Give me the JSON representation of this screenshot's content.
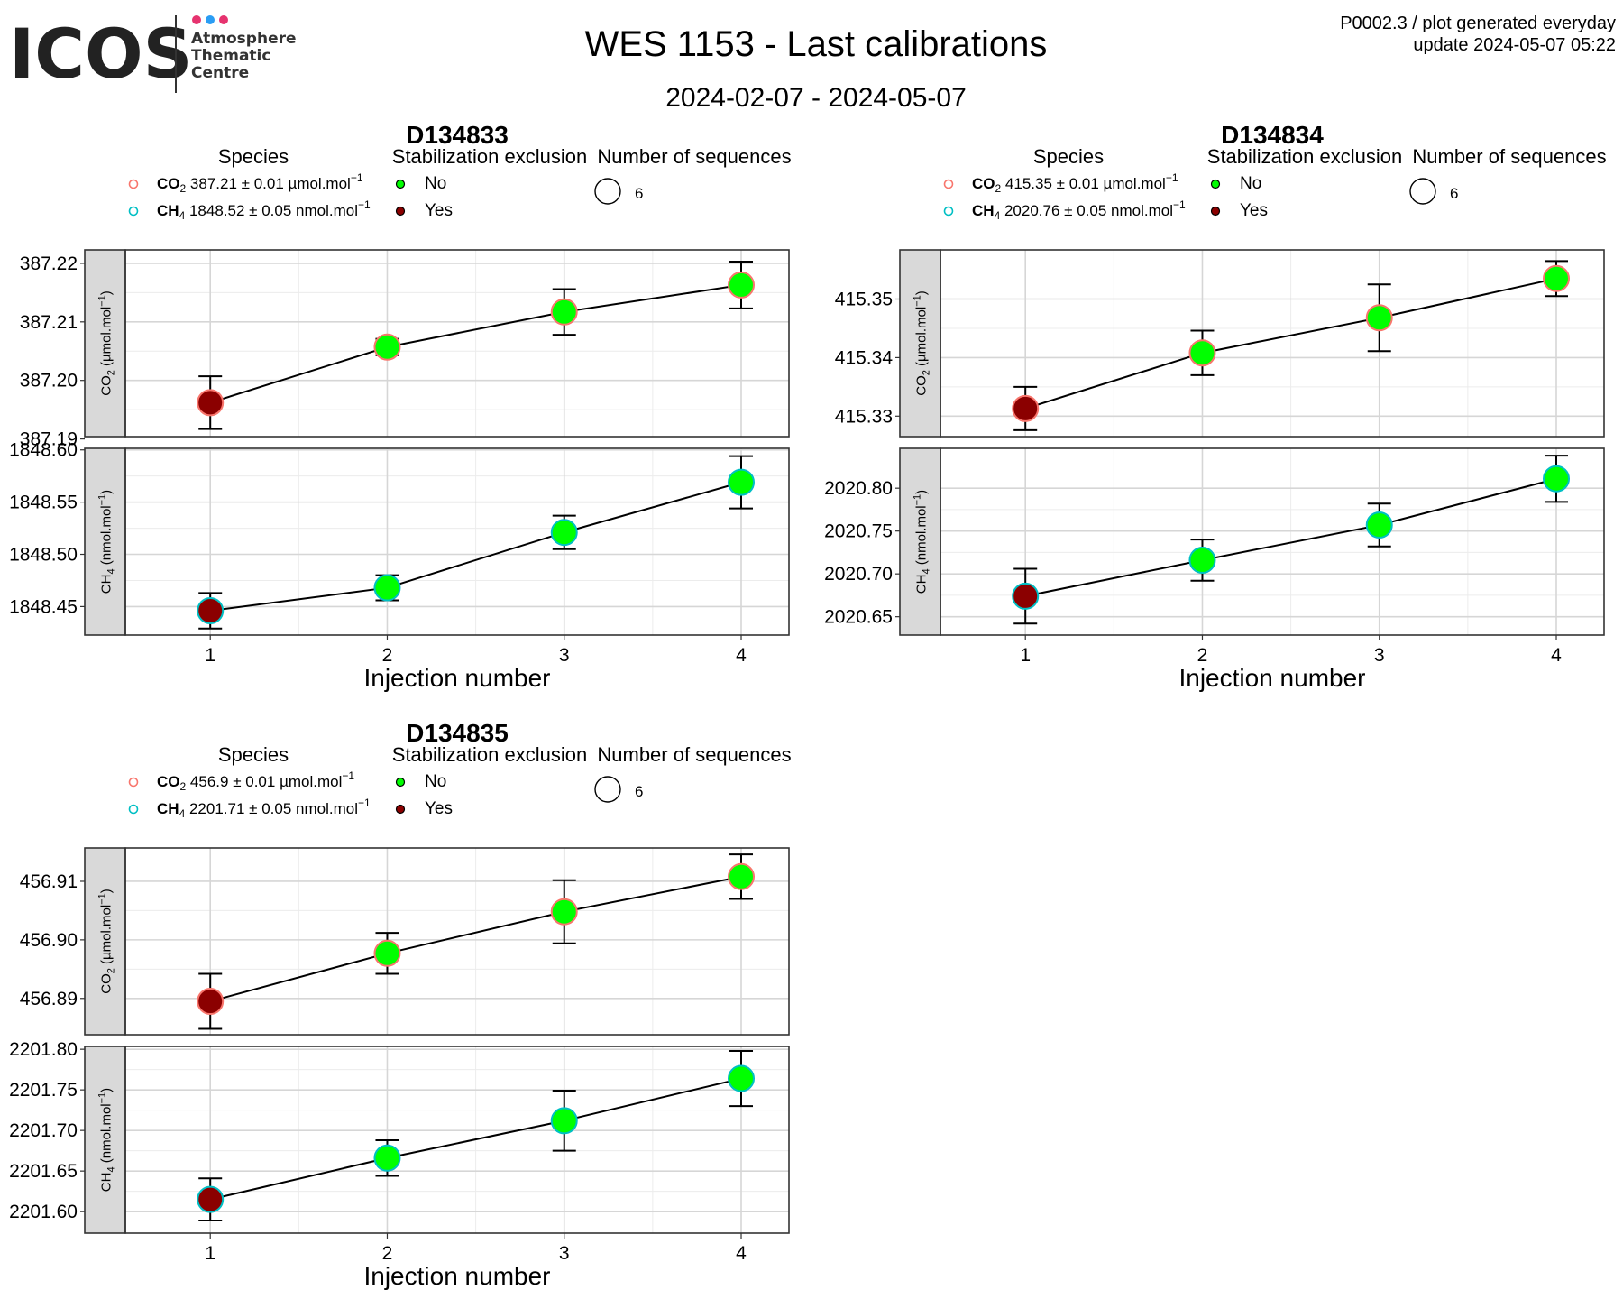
{
  "header": {
    "logo_word": "ICOS",
    "logo_sub": [
      "Atmosphere",
      "Thematic",
      "Centre"
    ],
    "logo_dot_colors": [
      "#e6336f",
      "#2a9df4",
      "#e6336f"
    ],
    "title": "WES 1153 - Last calibrations",
    "subtitle": "2024-02-07 - 2024-05-07",
    "meta_line1": "P0002.3 / plot generated everyday",
    "meta_line2": "update  2024-05-07 05:22"
  },
  "colors": {
    "no": "#00ff00",
    "yes": "#8b0000",
    "co2_outline": "#f8766d",
    "ch4_outline": "#00bfc4",
    "strip_fill": "#d9d9d9"
  },
  "chart_data": [
    {
      "type": "scatter",
      "title": "D134833",
      "legend": {
        "species_title": "Species",
        "species": [
          {
            "sym": "CO",
            "sub": "2",
            "value": "387.21",
            "pm": "±",
            "err": "0.01",
            "unit": "µmol.mol",
            "sup": "−1"
          },
          {
            "sym": "CH",
            "sub": "4",
            "value": "1848.52",
            "pm": "±",
            "err": "0.05",
            "unit": "nmol.mol",
            "sup": "−1"
          }
        ],
        "exclusion_title": "Stabilization exclusion",
        "exclusion": [
          "No",
          "Yes"
        ],
        "sequences_title": "Number of sequences",
        "sequences": "6"
      },
      "xlabel": "Injection number",
      "x_ticks": [
        "1",
        "2",
        "3",
        "4"
      ],
      "xlim": [
        0.52,
        4.27
      ],
      "panels": [
        {
          "strip_label": "CO",
          "strip_sub": "2",
          "strip_unit": " (µmol.mol",
          "strip_sup": "−1",
          "ylim": [
            387.1904,
            387.2223
          ],
          "y_ticks": [
            387.19,
            387.2,
            387.21,
            387.22
          ],
          "y_tick_labels": [
            "387.19",
            "387.20",
            "387.21",
            "387.22"
          ],
          "x": [
            1,
            2,
            3,
            4
          ],
          "y": [
            387.1962,
            387.2057,
            387.2117,
            387.2163
          ],
          "err": [
            0.0045,
            0.0014,
            0.0039,
            0.004
          ],
          "excluded": [
            true,
            false,
            false,
            false
          ]
        },
        {
          "strip_label": "CH",
          "strip_sub": "4",
          "strip_unit": " (nmol.mol",
          "strip_sup": "−1",
          "ylim": [
            1848.4227,
            1848.6015
          ],
          "y_ticks": [
            1848.45,
            1848.5,
            1848.55,
            1848.6
          ],
          "y_tick_labels": [
            "1848.45",
            "1848.50",
            "1848.55",
            "1848.60"
          ],
          "x": [
            1,
            2,
            3,
            4
          ],
          "y": [
            1848.446,
            1848.468,
            1848.521,
            1848.569
          ],
          "err": [
            0.017,
            0.012,
            0.016,
            0.025
          ],
          "excluded": [
            true,
            false,
            false,
            false
          ]
        }
      ]
    },
    {
      "type": "scatter",
      "title": "D134834",
      "legend": {
        "species_title": "Species",
        "species": [
          {
            "sym": "CO",
            "sub": "2",
            "value": "415.35",
            "pm": "±",
            "err": "0.01",
            "unit": "µmol.mol",
            "sup": "−1"
          },
          {
            "sym": "CH",
            "sub": "4",
            "value": "2020.76",
            "pm": "±",
            "err": "0.05",
            "unit": "nmol.mol",
            "sup": "−1"
          }
        ],
        "exclusion_title": "Stabilization exclusion",
        "exclusion": [
          "No",
          "Yes"
        ],
        "sequences_title": "Number of sequences",
        "sequences": "6"
      },
      "xlabel": "Injection number",
      "x_ticks": [
        "1",
        "2",
        "3",
        "4"
      ],
      "xlim": [
        0.52,
        4.27
      ],
      "panels": [
        {
          "strip_label": "CO",
          "strip_sub": "2",
          "strip_unit": " (µmol.mol",
          "strip_sup": "−1",
          "ylim": [
            415.3265,
            415.3584
          ],
          "y_ticks": [
            415.33,
            415.34,
            415.35
          ],
          "y_tick_labels": [
            "415.33",
            "415.34",
            "415.35"
          ],
          "x": [
            1,
            2,
            3,
            4
          ],
          "y": [
            415.3313,
            415.3408,
            415.3468,
            415.3535
          ],
          "err": [
            0.0037,
            0.0038,
            0.0057,
            0.003
          ],
          "excluded": [
            true,
            false,
            false,
            false
          ]
        },
        {
          "strip_label": "CH",
          "strip_sub": "4",
          "strip_unit": " (nmol.mol",
          "strip_sup": "−1",
          "ylim": [
            2020.6286,
            2020.8465
          ],
          "y_ticks": [
            2020.65,
            2020.7,
            2020.75,
            2020.8
          ],
          "y_tick_labels": [
            "2020.65",
            "2020.70",
            "2020.75",
            "2020.80"
          ],
          "x": [
            1,
            2,
            3,
            4
          ],
          "y": [
            2020.674,
            2020.716,
            2020.757,
            2020.811
          ],
          "err": [
            0.032,
            0.024,
            0.025,
            0.027
          ],
          "excluded": [
            true,
            false,
            false,
            false
          ]
        }
      ]
    },
    {
      "type": "scatter",
      "title": "D134835",
      "legend": {
        "species_title": "Species",
        "species": [
          {
            "sym": "CO",
            "sub": "2",
            "value": "456.9",
            "pm": "±",
            "err": "0.01",
            "unit": "µmol.mol",
            "sup": "−1"
          },
          {
            "sym": "CH",
            "sub": "4",
            "value": "2201.71",
            "pm": "±",
            "err": "0.05",
            "unit": "nmol.mol",
            "sup": "−1"
          }
        ],
        "exclusion_title": "Stabilization exclusion",
        "exclusion": [
          "No",
          "Yes"
        ],
        "sequences_title": "Number of sequences",
        "sequences": "6"
      },
      "xlabel": "Injection number",
      "x_ticks": [
        "1",
        "2",
        "3",
        "4"
      ],
      "xlim": [
        0.52,
        4.27
      ],
      "panels": [
        {
          "strip_label": "CO",
          "strip_sub": "2",
          "strip_unit": " (µmol.mol",
          "strip_sup": "−1",
          "ylim": [
            456.8838,
            456.9157
          ],
          "y_ticks": [
            456.89,
            456.9,
            456.91
          ],
          "y_tick_labels": [
            "456.89",
            "456.90",
            "456.91"
          ],
          "x": [
            1,
            2,
            3,
            4
          ],
          "y": [
            456.8895,
            456.8977,
            456.9048,
            456.9108
          ],
          "err": [
            0.0047,
            0.0035,
            0.0054,
            0.0038
          ],
          "excluded": [
            true,
            false,
            false,
            false
          ]
        },
        {
          "strip_label": "CH",
          "strip_sub": "4",
          "strip_unit": " (nmol.mol",
          "strip_sup": "−1",
          "ylim": [
            2201.5735,
            2201.8035
          ],
          "y_ticks": [
            2201.6,
            2201.65,
            2201.7,
            2201.75,
            2201.8
          ],
          "y_tick_labels": [
            "2201.60",
            "2201.65",
            "2201.70",
            "2201.75",
            "2201.80"
          ],
          "x": [
            1,
            2,
            3,
            4
          ],
          "y": [
            2201.615,
            2201.666,
            2201.712,
            2201.764
          ],
          "err": [
            0.026,
            0.022,
            0.037,
            0.034
          ],
          "excluded": [
            true,
            false,
            false,
            false
          ]
        }
      ]
    }
  ]
}
